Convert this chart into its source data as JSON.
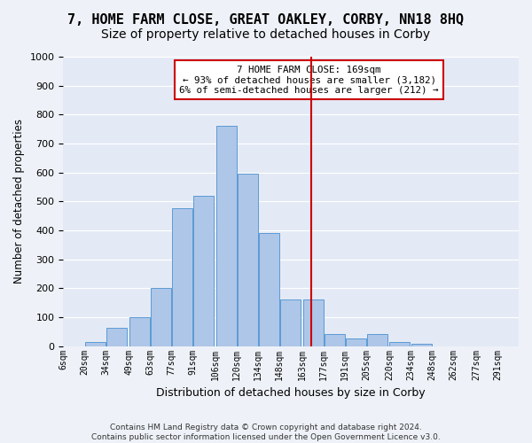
{
  "title": "7, HOME FARM CLOSE, GREAT OAKLEY, CORBY, NN18 8HQ",
  "subtitle": "Size of property relative to detached houses in Corby",
  "xlabel": "Distribution of detached houses by size in Corby",
  "ylabel": "Number of detached properties",
  "footer_line1": "Contains HM Land Registry data © Crown copyright and database right 2024.",
  "footer_line2": "Contains public sector information licensed under the Open Government Licence v3.0.",
  "annotation_line1": "7 HOME FARM CLOSE: 169sqm",
  "annotation_line2": "← 93% of detached houses are smaller (3,182)",
  "annotation_line3": "6% of semi-detached houses are larger (212) →",
  "bar_color": "#aec6e8",
  "bar_edge_color": "#5b9bd5",
  "vline_color": "#cc0000",
  "bin_starts": [
    6,
    20,
    34,
    49,
    63,
    77,
    91,
    106,
    120,
    134,
    148,
    163,
    177,
    191,
    205,
    220,
    234,
    248,
    262,
    277
  ],
  "bin_width": 14,
  "tick_labels": [
    "6sqm",
    "20sqm",
    "34sqm",
    "49sqm",
    "63sqm",
    "77sqm",
    "91sqm",
    "106sqm",
    "120sqm",
    "134sqm",
    "148sqm",
    "163sqm",
    "177sqm",
    "191sqm",
    "205sqm",
    "220sqm",
    "234sqm",
    "248sqm",
    "262sqm",
    "277sqm",
    "291sqm"
  ],
  "values": [
    0,
    14,
    62,
    100,
    200,
    475,
    520,
    760,
    595,
    390,
    160,
    160,
    42,
    27,
    43,
    14,
    7,
    0,
    0,
    0
  ],
  "ylim": [
    0,
    1000
  ],
  "yticks": [
    0,
    100,
    200,
    300,
    400,
    500,
    600,
    700,
    800,
    900,
    1000
  ],
  "background_color": "#eef2f8",
  "plot_bg_color": "#e4eaf5",
  "grid_color": "#ffffff",
  "title_fontsize": 11,
  "subtitle_fontsize": 10,
  "annotation_box_color": "#cc0000",
  "vline_x": 169
}
